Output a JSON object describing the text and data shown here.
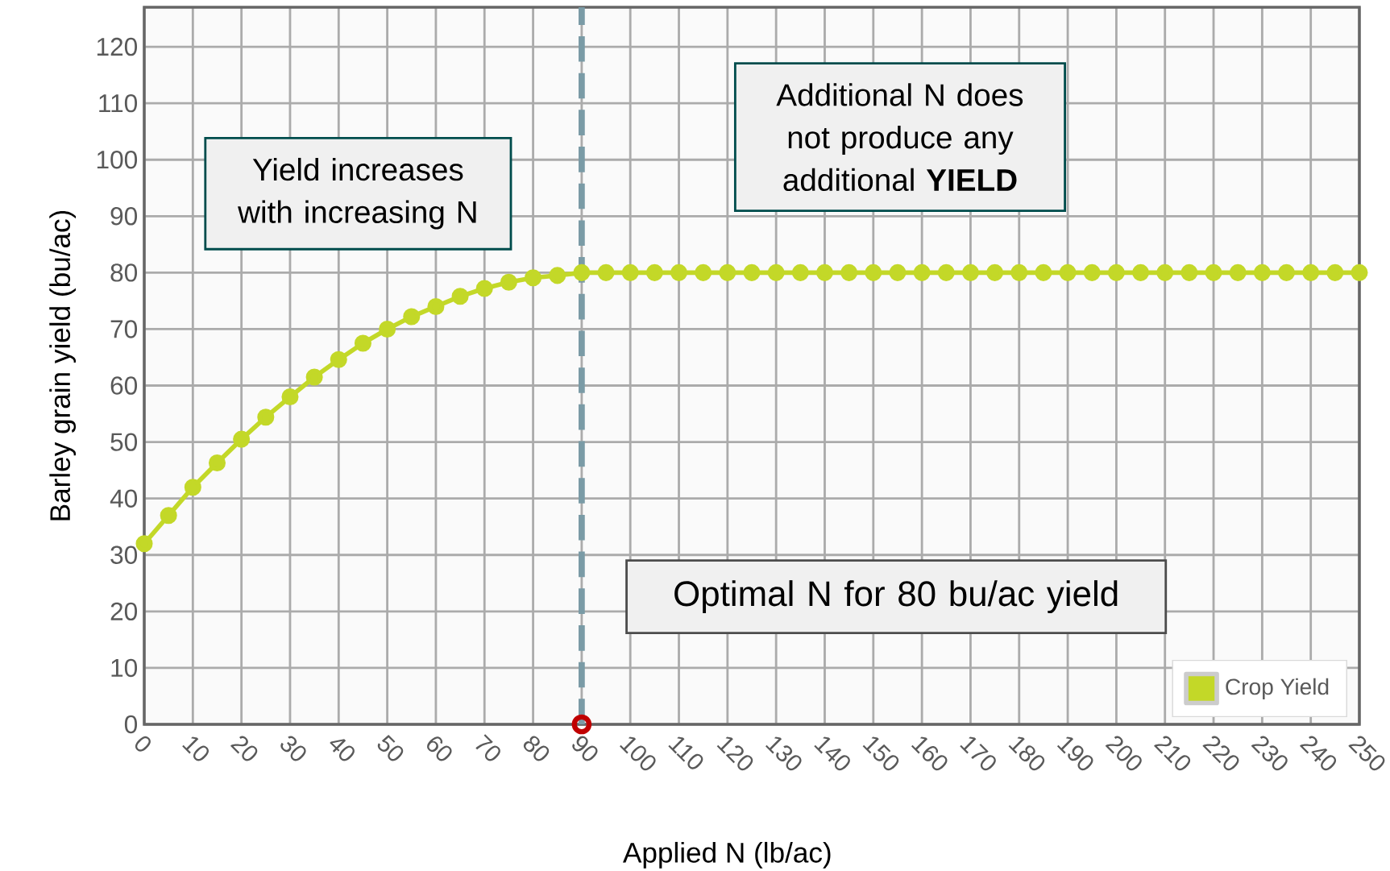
{
  "chart_data": {
    "type": "line",
    "xlabel": "Applied N (lb/ac)",
    "ylabel": "Barley grain yield (bu/ac)",
    "xlim": [
      0,
      250
    ],
    "xticks": [
      0,
      10,
      20,
      30,
      40,
      50,
      60,
      70,
      80,
      90,
      100,
      110,
      120,
      130,
      140,
      150,
      160,
      170,
      180,
      190,
      200,
      210,
      220,
      230,
      240,
      250
    ],
    "ylim": [
      0,
      127
    ],
    "yticks": [
      0,
      10,
      20,
      30,
      40,
      50,
      60,
      70,
      80,
      90,
      100,
      110,
      120
    ],
    "grid": true,
    "legend": "bottom right",
    "marker": "circle",
    "line_style": "solid",
    "series": [
      {
        "name": "Crop Yield",
        "color": "#c3d828",
        "x": [
          0,
          5,
          10,
          15,
          20,
          25,
          30,
          35,
          40,
          45,
          50,
          55,
          60,
          65,
          70,
          75,
          80,
          85,
          90,
          95,
          100,
          105,
          110,
          115,
          120,
          125,
          130,
          135,
          140,
          145,
          150,
          155,
          160,
          165,
          170,
          175,
          180,
          185,
          190,
          195,
          200,
          205,
          210,
          215,
          220,
          225,
          230,
          235,
          240,
          245,
          250
        ],
        "values": [
          32,
          37,
          42,
          46.3,
          50.5,
          54.4,
          58,
          61.5,
          64.6,
          67.5,
          70,
          72.2,
          74,
          75.8,
          77.2,
          78.3,
          79.1,
          79.5,
          80,
          80,
          80,
          80,
          80,
          80,
          80,
          80,
          80,
          80,
          80,
          80,
          80,
          80,
          80,
          80,
          80,
          80,
          80,
          80,
          80,
          80,
          80,
          80,
          80,
          80,
          80,
          80,
          80,
          80,
          80,
          80,
          80
        ]
      },
      {
        "type": "scatter",
        "color": "#c00000",
        "marker": "circle",
        "x": [
          90
        ],
        "values": [
          0
        ]
      }
    ],
    "ref_lines": [
      {
        "axis": "x",
        "value": 90,
        "color": "#7a9ba6",
        "line_style": "dashed"
      }
    ],
    "annotations": [
      "Yield increases with increasing N",
      "Additional N does not produce any additional **YIELD**",
      "Optimal N for 80 bu/ac yield"
    ]
  }
}
